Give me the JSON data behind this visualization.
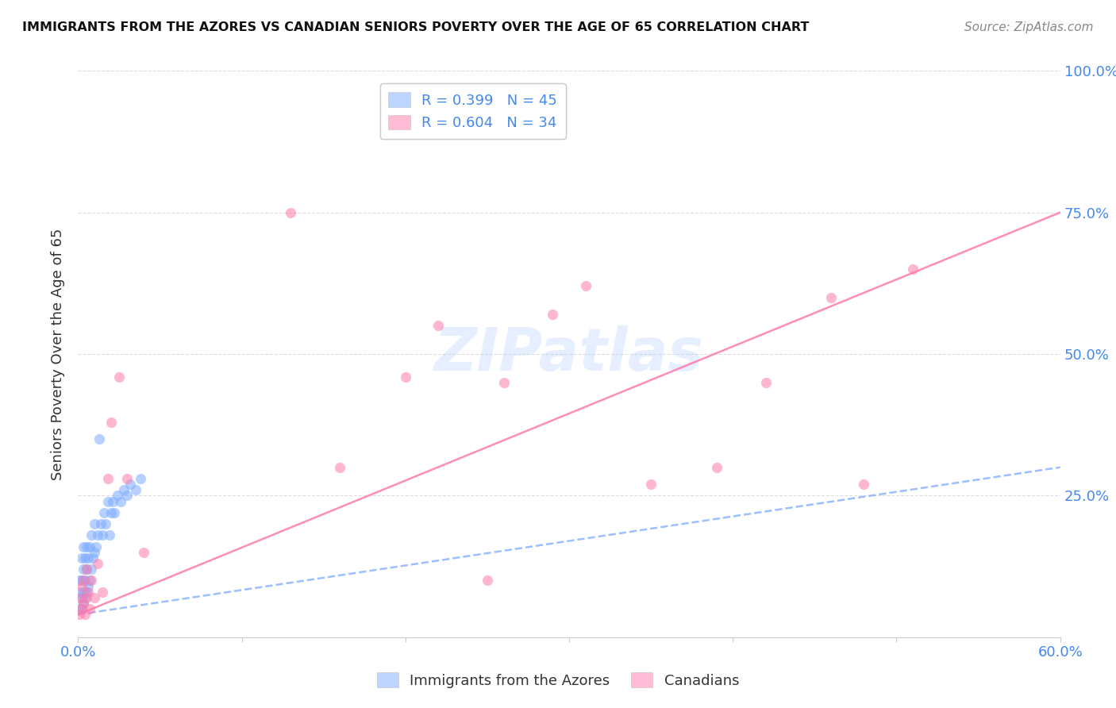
{
  "title": "IMMIGRANTS FROM THE AZORES VS CANADIAN SENIORS POVERTY OVER THE AGE OF 65 CORRELATION CHART",
  "source": "Source: ZipAtlas.com",
  "ylabel": "Seniors Poverty Over the Age of 65",
  "xlim": [
    0.0,
    0.6
  ],
  "ylim": [
    0.0,
    1.0
  ],
  "grid_color": "#dddddd",
  "background_color": "#ffffff",
  "series1_name": "Immigrants from the Azores",
  "series1_color": "#7aaaff",
  "series1_R": 0.399,
  "series1_N": 45,
  "series2_name": "Canadians",
  "series2_color": "#ff7aaa",
  "series2_R": 0.604,
  "series2_N": 34,
  "trendline1_x0": 0.0,
  "trendline1_y0": 0.04,
  "trendline1_x1": 0.6,
  "trendline1_y1": 0.3,
  "trendline2_x0": 0.0,
  "trendline2_y0": 0.04,
  "trendline2_x1": 0.6,
  "trendline2_y1": 0.75,
  "s1_x": [
    0.001,
    0.001,
    0.001,
    0.002,
    0.002,
    0.002,
    0.002,
    0.003,
    0.003,
    0.003,
    0.003,
    0.004,
    0.004,
    0.004,
    0.005,
    0.005,
    0.005,
    0.006,
    0.006,
    0.007,
    0.007,
    0.008,
    0.008,
    0.009,
    0.01,
    0.01,
    0.011,
    0.012,
    0.013,
    0.014,
    0.015,
    0.016,
    0.017,
    0.018,
    0.019,
    0.02,
    0.021,
    0.022,
    0.024,
    0.026,
    0.028,
    0.03,
    0.032,
    0.035,
    0.038
  ],
  "s1_y": [
    0.05,
    0.08,
    0.1,
    0.05,
    0.07,
    0.1,
    0.14,
    0.06,
    0.08,
    0.12,
    0.16,
    0.07,
    0.1,
    0.14,
    0.08,
    0.12,
    0.16,
    0.09,
    0.14,
    0.1,
    0.16,
    0.12,
    0.18,
    0.14,
    0.15,
    0.2,
    0.16,
    0.18,
    0.35,
    0.2,
    0.18,
    0.22,
    0.2,
    0.24,
    0.18,
    0.22,
    0.24,
    0.22,
    0.25,
    0.24,
    0.26,
    0.25,
    0.27,
    0.26,
    0.28
  ],
  "s2_x": [
    0.001,
    0.001,
    0.002,
    0.002,
    0.003,
    0.003,
    0.004,
    0.005,
    0.005,
    0.006,
    0.007,
    0.008,
    0.01,
    0.012,
    0.015,
    0.018,
    0.02,
    0.025,
    0.03,
    0.04,
    0.13,
    0.16,
    0.2,
    0.22,
    0.26,
    0.29,
    0.31,
    0.35,
    0.39,
    0.42,
    0.46,
    0.48,
    0.51,
    0.25
  ],
  "s2_y": [
    0.04,
    0.07,
    0.05,
    0.09,
    0.06,
    0.1,
    0.04,
    0.07,
    0.12,
    0.08,
    0.05,
    0.1,
    0.07,
    0.13,
    0.08,
    0.28,
    0.38,
    0.46,
    0.28,
    0.15,
    0.75,
    0.3,
    0.46,
    0.55,
    0.45,
    0.57,
    0.62,
    0.27,
    0.3,
    0.45,
    0.6,
    0.27,
    0.65,
    0.1
  ]
}
